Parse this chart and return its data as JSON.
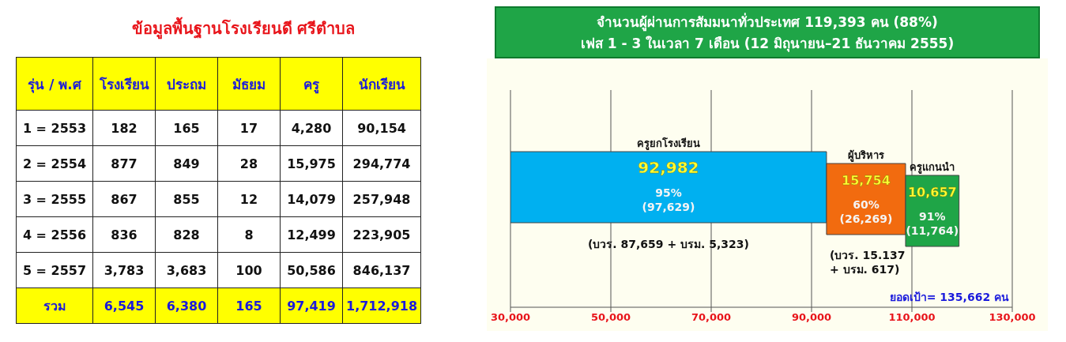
{
  "chart_data": [
    {
      "type": "other",
      "title": "ข้อมูลพื้นฐานโรงเรียนดี ศรีตำบล",
      "categories": [
        "รุ่น / พ.ศ",
        "โรงเรียน",
        "ประถม",
        "มัธยม",
        "ครู",
        "นักเรียน"
      ],
      "y_categories": [
        "1 = 2553",
        "2 = 2554",
        "3 = 2555",
        "4 = 2556",
        "5 = 2557",
        "รวม"
      ],
      "cell_labels": [
        [
          "182",
          "165",
          "17",
          "4,280",
          "90,154"
        ],
        [
          "877",
          "849",
          "28",
          "15,975",
          "294,774"
        ],
        [
          "867",
          "855",
          "12",
          "14,079",
          "257,948"
        ],
        [
          "836",
          "828",
          "8",
          "12,499",
          "223,905"
        ],
        [
          "3,783",
          "3,683",
          "100",
          "50,586",
          "846,137"
        ],
        [
          "6,545",
          "6,380",
          "165",
          "97,419",
          "1,712,918"
        ]
      ]
    },
    {
      "type": "bar",
      "orientation": "horizontal",
      "title": "จำนวนผู้ผ่านการสัมมนาทั่วประเทศ 119,393 คน (88%)",
      "subtitle": "เฟส 1 - 3 ในเวลา 7 เดือน (12 มิถุนายน–21 ธันวาคม 2555)",
      "categories": [
        null
      ],
      "series": [
        {
          "name": "ครูยกโรงเรียน",
          "color": "#00b0f0",
          "values": [
            92982
          ],
          "value_labels": [
            "92,982"
          ]
        },
        {
          "name": "ผู้บริหาร",
          "color": "#f26b0f",
          "values": [
            15754
          ],
          "base": [
            92982
          ],
          "value_labels": [
            "15,754"
          ]
        },
        {
          "name": "ครูแกนนำ",
          "color": "#1fa547",
          "values": [
            10657
          ],
          "base": [
            108736
          ],
          "value_labels": [
            "10,657"
          ]
        }
      ],
      "xlim": [
        30000,
        130000
      ],
      "xticks": [
        {
          "value": 30000,
          "label": "30,000"
        },
        {
          "value": 50000,
          "label": "50,000"
        },
        {
          "value": 70000,
          "label": "70,000"
        },
        {
          "value": 90000,
          "label": "90,000"
        },
        {
          "value": 110000,
          "label": "110,000"
        },
        {
          "value": 130000,
          "label": "130,000"
        }
      ],
      "grid": "x",
      "legend": false,
      "annotations": [
        "95%",
        "(97,629)",
        "60%",
        "(26,269)",
        "91%",
        "(11,764)",
        "(บวร. 87,659 + บรม. 5,323)",
        "(บวร. 15.137",
        "+ บรม. 617)",
        "ยอดเป้า= 135,662 คน"
      ]
    }
  ]
}
